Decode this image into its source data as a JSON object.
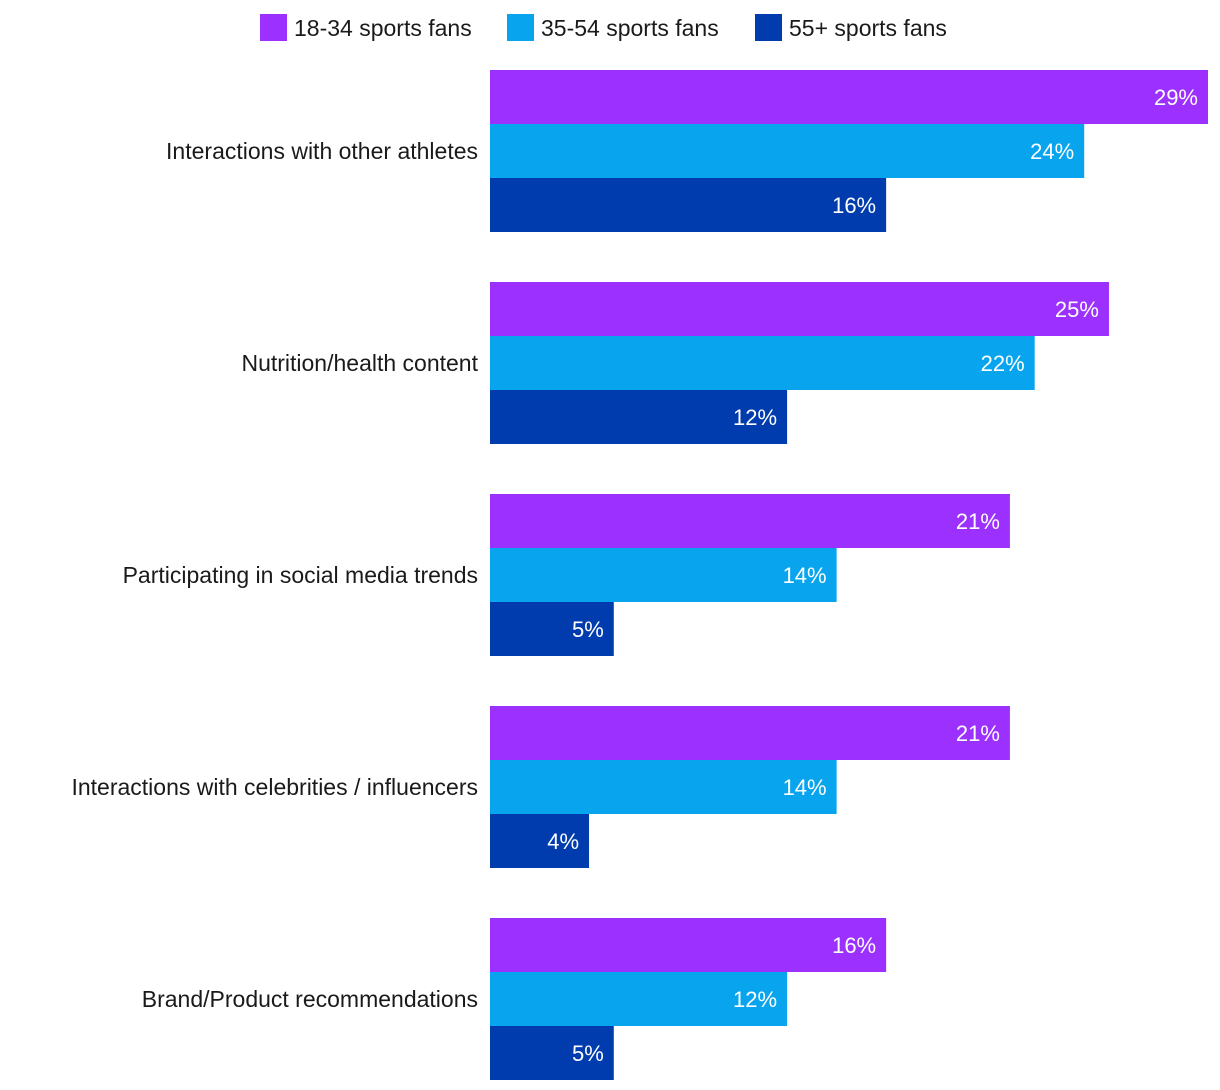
{
  "chart_data": {
    "type": "bar",
    "orientation": "horizontal",
    "title": "",
    "xlabel": "",
    "ylabel": "",
    "xlim": [
      0,
      29
    ],
    "grid": false,
    "legend_position": "top-center",
    "categories": [
      "Interactions with other athletes",
      "Nutrition/health content",
      "Participating in social media trends",
      "Interactions with celebrities / influencers",
      "Brand/Product recommendations"
    ],
    "series": [
      {
        "name": "18-34 sports fans",
        "color": "#9b30ff",
        "values": [
          29,
          25,
          21,
          21,
          16
        ],
        "labels": [
          "29%",
          "25%",
          "21%",
          "21%",
          "16%"
        ]
      },
      {
        "name": "35-54 sports fans",
        "color": "#08a5ee",
        "values": [
          24,
          22,
          14,
          14,
          12
        ],
        "labels": [
          "24%",
          "22%",
          "14%",
          "14%",
          "12%"
        ]
      },
      {
        "name": "55+ sports fans",
        "color": "#003cad",
        "values": [
          16,
          12,
          5,
          4,
          5
        ],
        "labels": [
          "16%",
          "12%",
          "5%",
          "4%",
          "5%"
        ]
      }
    ]
  }
}
